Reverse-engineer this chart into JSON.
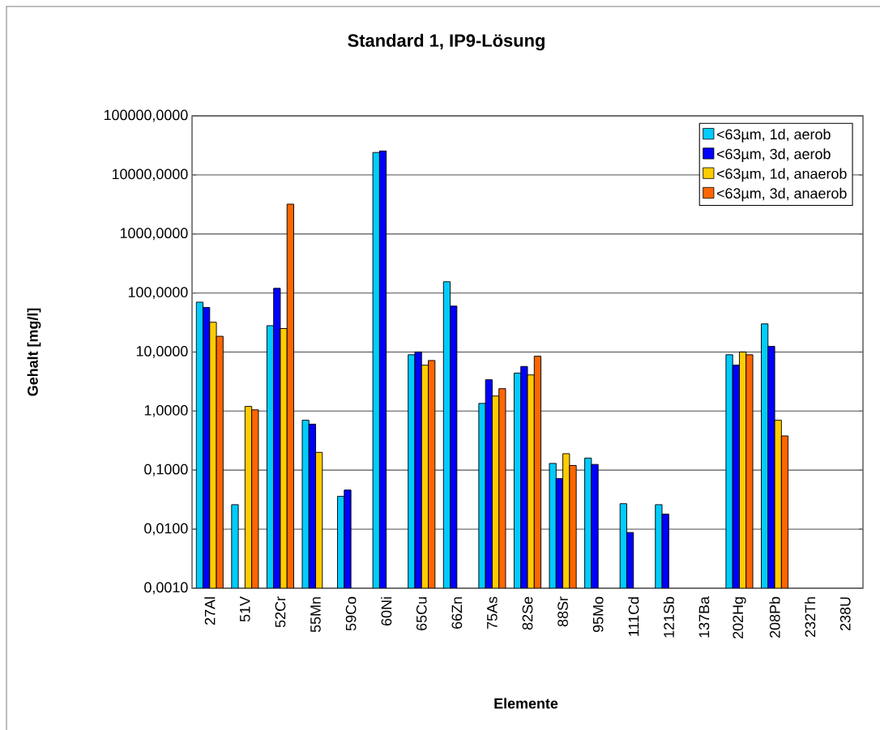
{
  "chart_data": {
    "type": "bar",
    "title": "Standard 1, IP9-Lösung",
    "xlabel": "Elemente",
    "ylabel": "Gehalt [mg/l]",
    "categories": [
      "27Al",
      "51V",
      "52Cr",
      "55Mn",
      "59Co",
      "60Ni",
      "65Cu",
      "66Zn",
      "75As",
      "82Se",
      "88Sr",
      "95Mo",
      "111Cd",
      "121Sb",
      "137Ba",
      "202Hg",
      "208Pb",
      "232Th",
      "238U"
    ],
    "series": [
      {
        "name": "<63µm, 1d, aerob",
        "color": "#00ccff",
        "values": [
          70,
          0.026,
          28,
          0.7,
          0.036,
          24000,
          9,
          155,
          1.35,
          4.4,
          0.13,
          0.16,
          0.027,
          0.026,
          null,
          9,
          30,
          null,
          null
        ]
      },
      {
        "name": "<63µm, 3d, aerob",
        "color": "#0000ff",
        "values": [
          57,
          null,
          120,
          0.6,
          0.046,
          25500,
          10,
          60,
          3.4,
          5.7,
          0.072,
          0.125,
          0.0088,
          0.018,
          null,
          6,
          12.5,
          null,
          null
        ]
      },
      {
        "name": "<63µm, 1d, anaerob",
        "color": "#ffcc00",
        "values": [
          32,
          1.2,
          25,
          0.2,
          null,
          null,
          6,
          null,
          1.8,
          4.1,
          0.19,
          null,
          null,
          null,
          null,
          10,
          0.7,
          null,
          null
        ]
      },
      {
        "name": "<63µm, 3d, anaerob",
        "color": "#ff6600",
        "values": [
          18.5,
          1.05,
          3200,
          null,
          null,
          null,
          7.2,
          null,
          2.4,
          8.5,
          0.12,
          null,
          null,
          null,
          null,
          9,
          0.38,
          null,
          null
        ]
      }
    ],
    "log": "y",
    "ylim": [
      0.001,
      100000
    ],
    "yticks": [
      {
        "value": 0.001,
        "label": "0,0010"
      },
      {
        "value": 0.01,
        "label": "0,0100"
      },
      {
        "value": 0.1,
        "label": "0,1000"
      },
      {
        "value": 1,
        "label": "1,0000"
      },
      {
        "value": 10,
        "label": "10,0000"
      },
      {
        "value": 100,
        "label": "100,0000"
      },
      {
        "value": 1000,
        "label": "1000,0000"
      },
      {
        "value": 10000,
        "label": "10000,0000"
      },
      {
        "value": 100000,
        "label": "100000,0000"
      }
    ],
    "grid": "y",
    "legend": "top right"
  }
}
